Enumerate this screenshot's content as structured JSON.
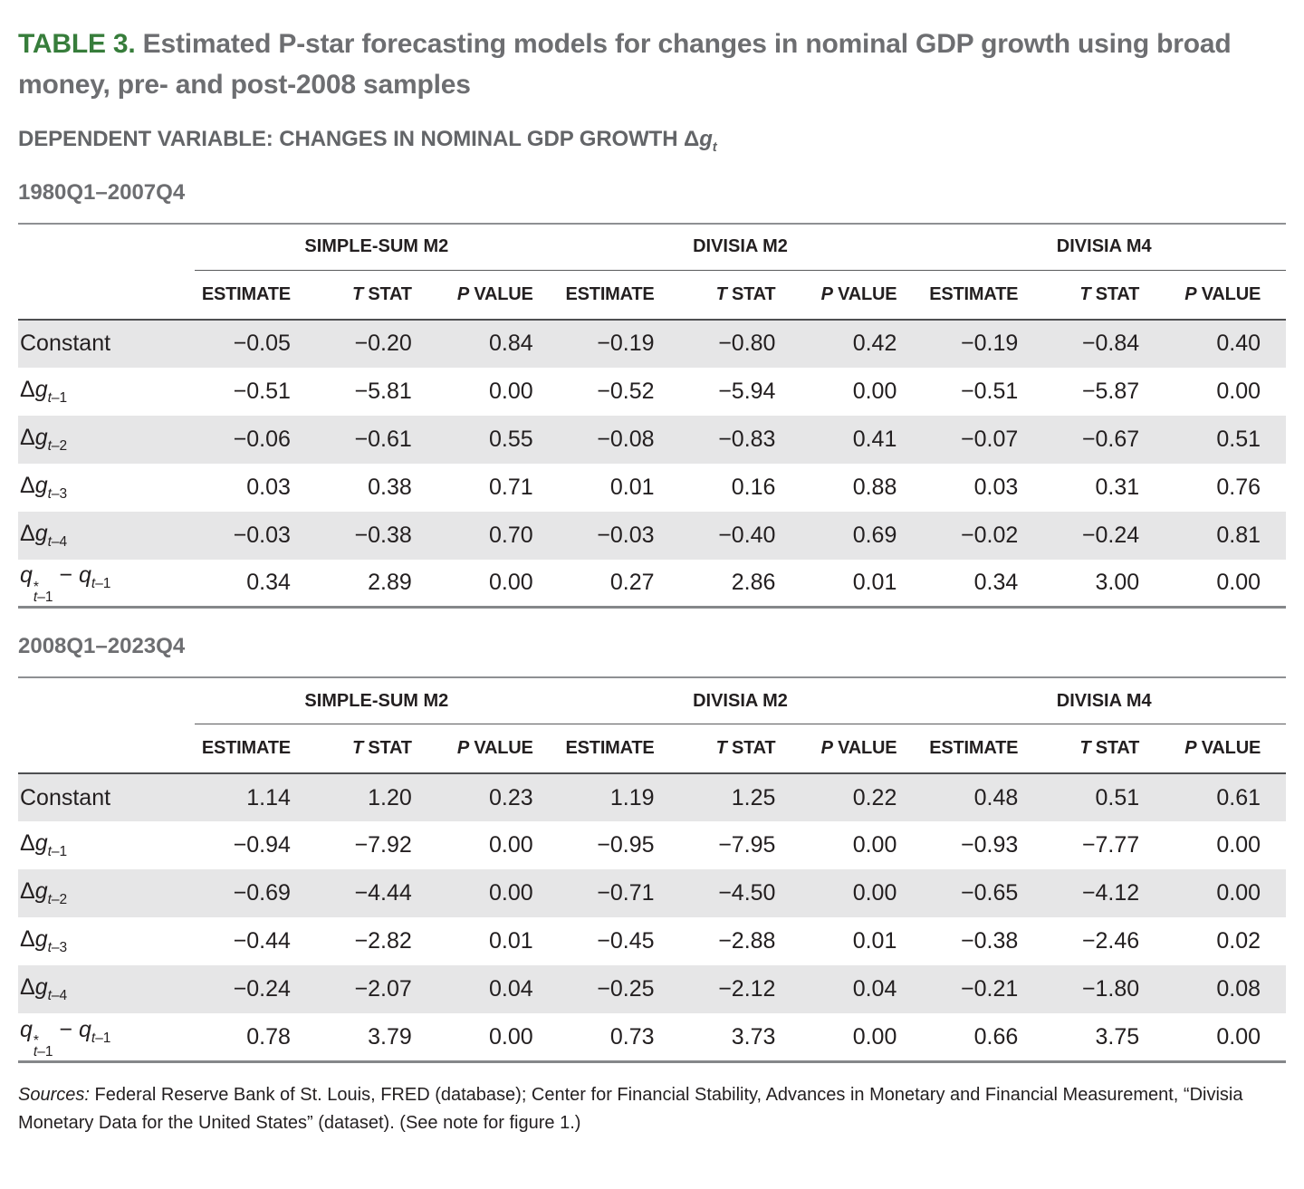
{
  "header": {
    "table_label": "TABLE 3.",
    "title": " Estimated P-star forecasting models for changes in nominal GDP growth using broad money, pre- and post-2008 samples",
    "dependent_variable": "DEPENDENT VARIABLE: CHANGES IN NOMINAL GDP GROWTH ",
    "dep_var_math": [
      {
        "t": "Δ"
      },
      {
        "t": "g",
        "i": 1
      },
      {
        "sub": [
          {
            "t": "t",
            "i": 1
          }
        ]
      }
    ]
  },
  "table": {
    "column_groups": [
      "SIMPLE-SUM M2",
      "DIVISIA M2",
      "DIVISIA M4"
    ],
    "column_headers": [
      {
        "italic": "",
        "text": "ESTIMATE"
      },
      {
        "italic": "T",
        "text": " STAT"
      },
      {
        "italic": "P",
        "text": " VALUE"
      }
    ],
    "row_labels": [
      [
        {
          "t": "Constant"
        }
      ],
      [
        {
          "t": "Δ"
        },
        {
          "t": "g",
          "i": 1
        },
        {
          "sub": [
            {
              "t": "t",
              "i": 1
            },
            {
              "t": "–1"
            }
          ]
        }
      ],
      [
        {
          "t": "Δ"
        },
        {
          "t": "g",
          "i": 1
        },
        {
          "sub": [
            {
              "t": "t",
              "i": 1
            },
            {
              "t": "–2"
            }
          ]
        }
      ],
      [
        {
          "t": "Δ"
        },
        {
          "t": "g",
          "i": 1
        },
        {
          "sub": [
            {
              "t": "t",
              "i": 1
            },
            {
              "t": "–3"
            }
          ]
        }
      ],
      [
        {
          "t": "Δ"
        },
        {
          "t": "g",
          "i": 1
        },
        {
          "sub": [
            {
              "t": "t",
              "i": 1
            },
            {
              "t": "–4"
            }
          ]
        }
      ],
      [
        {
          "t": "q",
          "i": 1
        },
        {
          "stack": {
            "sup": "*",
            "sub": [
              {
                "t": "t",
                "i": 1
              },
              {
                "t": "–1"
              }
            ]
          }
        },
        {
          "t": " − "
        },
        {
          "t": "q",
          "i": 1
        },
        {
          "sub": [
            {
              "t": "t",
              "i": 1
            },
            {
              "t": "–1"
            }
          ]
        }
      ]
    ]
  },
  "samples": [
    {
      "id": "1980q1-2007q4",
      "period": "1980Q1–2007Q4",
      "rows": [
        [
          "−0.05",
          "−0.20",
          "0.84",
          "−0.19",
          "−0.80",
          "0.42",
          "−0.19",
          "−0.84",
          "0.40"
        ],
        [
          "−0.51",
          "−5.81",
          "0.00",
          "−0.52",
          "−5.94",
          "0.00",
          "−0.51",
          "−5.87",
          "0.00"
        ],
        [
          "−0.06",
          "−0.61",
          "0.55",
          "−0.08",
          "−0.83",
          "0.41",
          "−0.07",
          "−0.67",
          "0.51"
        ],
        [
          "0.03",
          "0.38",
          "0.71",
          "0.01",
          "0.16",
          "0.88",
          "0.03",
          "0.31",
          "0.76"
        ],
        [
          "−0.03",
          "−0.38",
          "0.70",
          "−0.03",
          "−0.40",
          "0.69",
          "−0.02",
          "−0.24",
          "0.81"
        ],
        [
          "0.34",
          "2.89",
          "0.00",
          "0.27",
          "2.86",
          "0.01",
          "0.34",
          "3.00",
          "0.00"
        ]
      ]
    },
    {
      "id": "2008q1-2023q4",
      "period": "2008Q1–2023Q4",
      "rows": [
        [
          "1.14",
          "1.20",
          "0.23",
          "1.19",
          "1.25",
          "0.22",
          "0.48",
          "0.51",
          "0.61"
        ],
        [
          "−0.94",
          "−7.92",
          "0.00",
          "−0.95",
          "−7.95",
          "0.00",
          "−0.93",
          "−7.77",
          "0.00"
        ],
        [
          "−0.69",
          "−4.44",
          "0.00",
          "−0.71",
          "−4.50",
          "0.00",
          "−0.65",
          "−4.12",
          "0.00"
        ],
        [
          "−0.44",
          "−2.82",
          "0.01",
          "−0.45",
          "−2.88",
          "0.01",
          "−0.38",
          "−2.46",
          "0.02"
        ],
        [
          "−0.24",
          "−2.07",
          "0.04",
          "−0.25",
          "−2.12",
          "0.04",
          "−0.21",
          "−1.80",
          "0.08"
        ],
        [
          "0.78",
          "3.79",
          "0.00",
          "0.73",
          "3.73",
          "0.00",
          "0.66",
          "3.75",
          "0.00"
        ]
      ]
    }
  ],
  "sources": {
    "lead": "Sources:",
    "text": " Federal Reserve Bank of St. Louis, FRED (database); Center for Financial Stability, Advances in Monetary and Financial Measurement, “Divisia Monetary Data for the United States” (dataset). (See note for figure 1.)"
  },
  "colors": {
    "accent_green": "#377D3B",
    "title_gray": "#6D6E71",
    "text_black": "#231F20",
    "row_shade": "#E6E6E7",
    "rule_gray": "#8E9093"
  }
}
